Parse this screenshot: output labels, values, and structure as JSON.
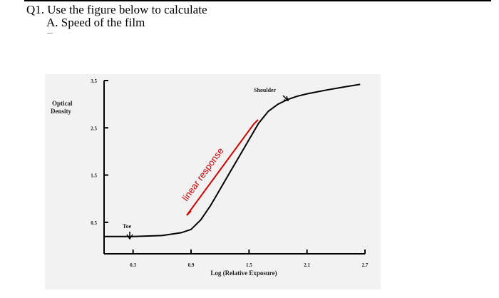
{
  "question": {
    "title": "Q1. Use the figure below to calculate",
    "part_a": "A.  Speed of the film"
  },
  "chart_data": {
    "type": "line",
    "title": "",
    "xlabel": "Log (Relative Exposure)",
    "ylabel_line1": "Optical",
    "ylabel_line2": "Density",
    "x_ticks": [
      "0.3",
      "0.9",
      "1.5",
      "2.1",
      "2.7"
    ],
    "y_ticks": [
      "3.5",
      "2.5",
      "1.5",
      "0.5"
    ],
    "xlim": [
      0,
      2.7
    ],
    "ylim": [
      0,
      3.5
    ],
    "series": [
      {
        "x": [
          0.0,
          0.3,
          0.6,
          0.8,
          0.9,
          1.0,
          1.1,
          1.2,
          1.3,
          1.4,
          1.5,
          1.6,
          1.7,
          1.8,
          1.9,
          2.0,
          2.1,
          2.3,
          2.5,
          2.65
        ],
        "y": [
          0.2,
          0.2,
          0.22,
          0.28,
          0.35,
          0.55,
          0.85,
          1.2,
          1.55,
          1.9,
          2.25,
          2.6,
          2.85,
          3.0,
          3.1,
          3.17,
          3.22,
          3.3,
          3.37,
          3.42
        ]
      }
    ],
    "annotations": {
      "toe": "Toe",
      "shoulder": "Shoulder",
      "linear": "linear response"
    },
    "colors": {
      "curve": "#000000",
      "linear_bracket": "#cc0000"
    },
    "grid": false
  }
}
